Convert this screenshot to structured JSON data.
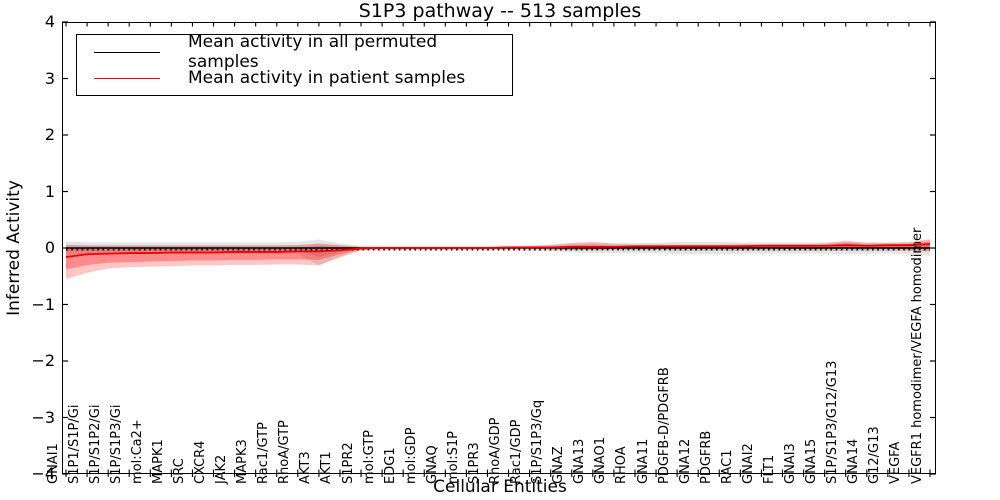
{
  "figure": {
    "title": "S1P3 pathway -- 513 samples"
  },
  "legend": {
    "position": "upper left",
    "items": [
      {
        "label": "Mean activity in all permuted samples",
        "color": "#000000"
      },
      {
        "label": "Mean activity in patient samples",
        "color": "#ff0000"
      }
    ]
  },
  "axes": {
    "ylabel": "Inferred Activity",
    "xlabel": "Cellular Entities",
    "ytick_labels": [
      "4",
      "3",
      "2",
      "1",
      "0",
      "−1",
      "−2",
      "−3",
      "−4"
    ]
  },
  "chart_data": {
    "type": "line",
    "title": "S1P3 pathway -- 513 samples",
    "xlabel": "Cellular Entities",
    "ylabel": "Inferred Activity",
    "ylim": [
      -4,
      4
    ],
    "yticks": [
      4,
      3,
      2,
      1,
      0,
      -1,
      -2,
      -3,
      -4
    ],
    "grid": false,
    "legend_position": "upper left",
    "sample_count": 513,
    "categories": [
      "GNAI1",
      "S1P1/S1P/Gi",
      "S1P/S1P2/Gi",
      "S1P/S1P3/Gi",
      "mol:Ca2+",
      "MAPK1",
      "SRC",
      "CXCR4",
      "JAK2",
      "MAPK3",
      "Rac1/GTP",
      "RhoA/GTP",
      "AKT3",
      "AKT1",
      "S1PR2",
      "mol:GTP",
      "EDG1",
      "mol:GDP",
      "GNAQ",
      "mol:S1P",
      "S1PR3",
      "RhoA/GDP",
      "Rac1/GDP",
      "S1P/S1P3/Gq",
      "GNAZ",
      "GNA13",
      "GNAO1",
      "RHOA",
      "GNA11",
      "PDGFB-D/PDGFRB",
      "GNA12",
      "PDGFRB",
      "RAC1",
      "GNAI2",
      "FLT1",
      "GNAI3",
      "GNA15",
      "S1P/S1P3/G12/G13",
      "GNA14",
      "G12/G13",
      "VEGFA",
      "VEGFR1 homodimer/VEGFA homodimer"
    ],
    "series": [
      {
        "name": "Mean activity in all permuted samples",
        "color": "#000000",
        "style": "solid-with-tick-marks",
        "values": [
          0,
          0,
          0,
          0,
          0,
          0,
          0,
          0,
          0,
          0,
          0,
          0,
          0,
          0,
          0,
          0,
          0,
          0,
          0,
          0,
          0,
          0,
          0,
          0,
          0,
          0,
          0,
          0,
          0,
          0,
          0,
          0,
          0,
          0,
          0,
          0,
          0,
          0,
          0,
          0,
          0,
          0
        ]
      },
      {
        "name": "Mean activity in patient samples",
        "color": "#ee0000",
        "style": "solid",
        "values": [
          -0.16,
          -0.11,
          -0.1,
          -0.09,
          -0.09,
          -0.08,
          -0.08,
          -0.08,
          -0.07,
          -0.07,
          -0.07,
          -0.06,
          -0.06,
          -0.04,
          -0.01,
          0,
          0,
          0,
          0,
          0,
          0,
          0.01,
          0.01,
          0.01,
          0.02,
          0.02,
          0.02,
          0.03,
          0.03,
          0.03,
          0.03,
          0.03,
          0.03,
          0.04,
          0.04,
          0.04,
          0.04,
          0.05,
          0.04,
          0.05,
          0.05,
          0.07
        ]
      }
    ],
    "bands": [
      {
        "name": "permuted-outer",
        "color": "rgba(135,135,135,0.22)",
        "upper": [
          0.12,
          0.1,
          0.1,
          0.1,
          0.1,
          0.1,
          0.1,
          0.1,
          0.1,
          0.1,
          0.1,
          0.11,
          0.15,
          0.08,
          0.04,
          0.04,
          0.04,
          0.04,
          0.04,
          0.04,
          0.04,
          0.04,
          0.05,
          0.06,
          0.08,
          0.09,
          0.09,
          0.09,
          0.09,
          0.11,
          0.11,
          0.11,
          0.1,
          0.1,
          0.1,
          0.1,
          0.1,
          0.11,
          0.1,
          0.1,
          0.11,
          0.14
        ],
        "lower": [
          -0.12,
          -0.1,
          -0.1,
          -0.1,
          -0.1,
          -0.1,
          -0.1,
          -0.1,
          -0.1,
          -0.1,
          -0.1,
          -0.11,
          -0.3,
          -0.15,
          -0.04,
          -0.04,
          -0.04,
          -0.04,
          -0.04,
          -0.04,
          -0.04,
          -0.04,
          -0.05,
          -0.06,
          -0.08,
          -0.09,
          -0.09,
          -0.09,
          -0.09,
          -0.11,
          -0.11,
          -0.11,
          -0.1,
          -0.1,
          -0.1,
          -0.1,
          -0.1,
          -0.11,
          -0.1,
          -0.1,
          -0.11,
          -0.14
        ]
      },
      {
        "name": "permuted-inner",
        "color": "rgba(120,120,120,0.25)",
        "upper": [
          0.06,
          0.05,
          0.05,
          0.05,
          0.05,
          0.05,
          0.05,
          0.05,
          0.05,
          0.05,
          0.05,
          0.05,
          0.07,
          0.04,
          0.02,
          0.02,
          0.02,
          0.02,
          0.02,
          0.02,
          0.02,
          0.02,
          0.02,
          0.03,
          0.04,
          0.04,
          0.04,
          0.04,
          0.04,
          0.05,
          0.05,
          0.05,
          0.05,
          0.05,
          0.05,
          0.05,
          0.05,
          0.05,
          0.05,
          0.05,
          0.05,
          0.07
        ],
        "lower": [
          -0.06,
          -0.05,
          -0.05,
          -0.05,
          -0.05,
          -0.05,
          -0.05,
          -0.05,
          -0.05,
          -0.05,
          -0.05,
          -0.05,
          -0.16,
          -0.07,
          -0.02,
          -0.02,
          -0.02,
          -0.02,
          -0.02,
          -0.02,
          -0.02,
          -0.02,
          -0.02,
          -0.03,
          -0.04,
          -0.04,
          -0.04,
          -0.04,
          -0.04,
          -0.05,
          -0.05,
          -0.05,
          -0.05,
          -0.05,
          -0.05,
          -0.05,
          -0.05,
          -0.05,
          -0.05,
          -0.05,
          -0.05,
          -0.07
        ]
      },
      {
        "name": "patient-outer",
        "color": "rgba(255,35,35,0.26)",
        "upper": [
          0.05,
          0.04,
          0.04,
          0.04,
          0.04,
          0.04,
          0.04,
          0.04,
          0.04,
          0.04,
          0.04,
          0.05,
          0.08,
          0.05,
          0.02,
          0.01,
          0.01,
          0.01,
          0.01,
          0.01,
          0.01,
          0.02,
          0.03,
          0.05,
          0.09,
          0.11,
          0.07,
          0.06,
          0.06,
          0.06,
          0.06,
          0.06,
          0.07,
          0.07,
          0.07,
          0.07,
          0.08,
          0.13,
          0.09,
          0.09,
          0.1,
          0.16
        ],
        "lower": [
          -0.55,
          -0.44,
          -0.36,
          -0.34,
          -0.33,
          -0.32,
          -0.31,
          -0.31,
          -0.3,
          -0.3,
          -0.29,
          -0.29,
          -0.31,
          -0.17,
          -0.04,
          -0.01,
          -0.01,
          -0.01,
          -0.01,
          -0.01,
          -0.01,
          -0.01,
          -0.01,
          -0.02,
          -0.03,
          -0.03,
          -0.02,
          -0.02,
          -0.02,
          -0.02,
          -0.02,
          -0.02,
          -0.02,
          -0.02,
          -0.02,
          -0.02,
          -0.02,
          -0.02,
          -0.02,
          -0.02,
          -0.03,
          -0.05
        ]
      },
      {
        "name": "patient-inner",
        "color": "rgba(250,25,25,0.34)",
        "upper": [
          0.01,
          0,
          0,
          0,
          0,
          0,
          0,
          0,
          0,
          0,
          0,
          0.01,
          0.03,
          0.02,
          0.01,
          0,
          0,
          0,
          0,
          0,
          0,
          0.01,
          0.01,
          0.02,
          0.05,
          0.06,
          0.04,
          0.03,
          0.03,
          0.03,
          0.03,
          0.03,
          0.04,
          0.04,
          0.04,
          0.04,
          0.05,
          0.09,
          0.06,
          0.06,
          0.07,
          0.11
        ],
        "lower": [
          -0.38,
          -0.3,
          -0.26,
          -0.25,
          -0.24,
          -0.23,
          -0.22,
          -0.22,
          -0.21,
          -0.21,
          -0.2,
          -0.2,
          -0.21,
          -0.11,
          -0.02,
          0,
          0,
          0,
          0,
          0,
          0,
          0,
          0,
          -0.01,
          -0.01,
          -0.01,
          -0.01,
          -0.01,
          -0.01,
          -0.01,
          -0.01,
          -0.01,
          -0.01,
          -0.01,
          -0.01,
          -0.01,
          -0.01,
          -0.01,
          -0.01,
          -0.01,
          -0.02,
          -0.02
        ]
      }
    ]
  }
}
